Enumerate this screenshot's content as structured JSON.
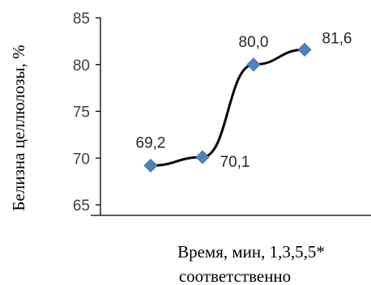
{
  "chart_data": {
    "type": "line",
    "smooth": true,
    "categories": [
      "1",
      "3",
      "5",
      "5*"
    ],
    "values": [
      69.2,
      70.1,
      80.0,
      81.6
    ],
    "data_labels": [
      "69,2",
      "70,1",
      "80,0",
      "81,6"
    ],
    "y_ticks": [
      "65",
      "70",
      "75",
      "80",
      "85"
    ],
    "ylim": [
      65,
      85
    ],
    "ylabel": "Белизна целлюлозы, %",
    "xlabel_line1": "Время, мин, 1,3,5,5*",
    "xlabel_line2": "соответственно",
    "grid": false,
    "legend": "none",
    "colors": {
      "line": "#000000",
      "marker": "#4F81BD",
      "axis": "#000000"
    }
  }
}
